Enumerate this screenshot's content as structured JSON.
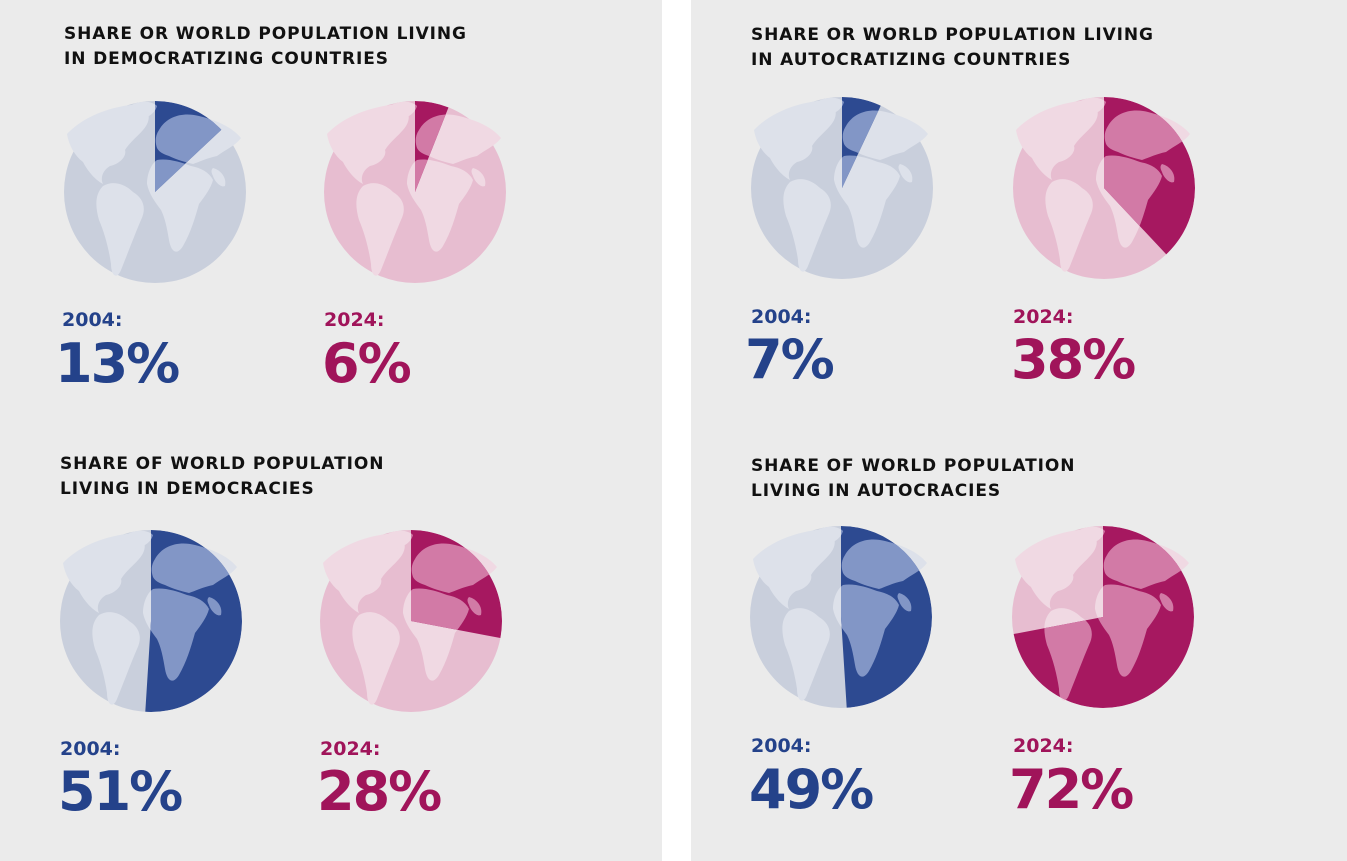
{
  "colors": {
    "blue_slice": "#2d4a91",
    "blue_bg": "#c9cfdc",
    "blue_land_bg": "#dde1ea",
    "blue_land_slice": "#8296c6",
    "pink_slice": "#a61860",
    "pink_bg": "#e7bdd0",
    "pink_land_bg": "#f0d9e3",
    "pink_land_slice": "#d27aa6"
  },
  "chart_data": [
    {
      "type": "pie",
      "title": "SHARE OR WORLD POPULATION LIVING IN DEMOCRATIZING COUNTRIES",
      "title_lines": [
        "SHARE OR WORLD POPULATION LIVING",
        "IN DEMOCRATIZING COUNTRIES"
      ],
      "series": [
        {
          "year_label": "2004:",
          "value": 13,
          "value_label": "13%",
          "color": "blue"
        },
        {
          "year_label": "2024:",
          "value": 6,
          "value_label": "6%",
          "color": "pink"
        }
      ]
    },
    {
      "type": "pie",
      "title": "SHARE OR WORLD POPULATION LIVING IN AUTOCRATIZING COUNTRIES",
      "title_lines": [
        "SHARE OR WORLD POPULATION LIVING",
        "IN AUTOCRATIZING COUNTRIES"
      ],
      "series": [
        {
          "year_label": "2004:",
          "value": 7,
          "value_label": "7%",
          "color": "blue"
        },
        {
          "year_label": "2024:",
          "value": 38,
          "value_label": "38%",
          "color": "pink"
        }
      ]
    },
    {
      "type": "pie",
      "title": "SHARE OF WORLD POPULATION LIVING IN DEMOCRACIES",
      "title_lines": [
        "SHARE OF WORLD POPULATION",
        "LIVING IN DEMOCRACIES"
      ],
      "series": [
        {
          "year_label": "2004:",
          "value": 51,
          "value_label": "51%",
          "color": "blue"
        },
        {
          "year_label": "2024:",
          "value": 28,
          "value_label": "28%",
          "color": "pink"
        }
      ]
    },
    {
      "type": "pie",
      "title": "SHARE OF WORLD POPULATION LIVING IN AUTOCRACIES",
      "title_lines": [
        "SHARE OF WORLD POPULATION",
        "LIVING IN AUTOCRACIES"
      ],
      "series": [
        {
          "year_label": "2004:",
          "value": 49,
          "value_label": "49%",
          "color": "blue"
        },
        {
          "year_label": "2024:",
          "value": 72,
          "value_label": "72%",
          "color": "pink"
        }
      ]
    }
  ]
}
